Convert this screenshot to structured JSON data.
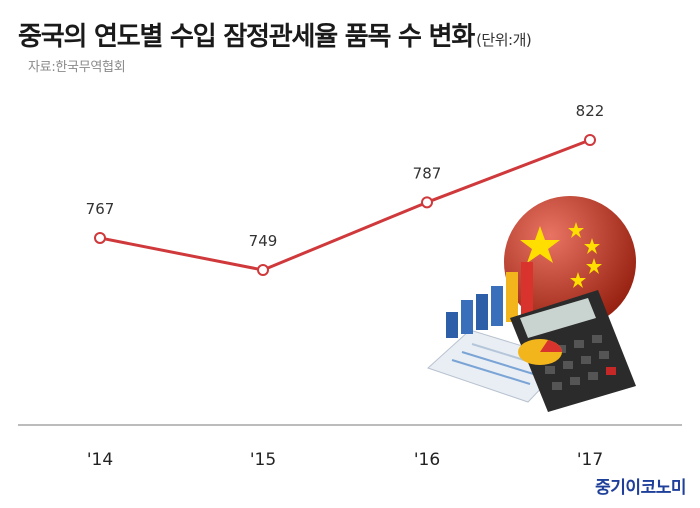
{
  "header": {
    "title": "중국의 연도별 수입 잠정관세율 품목 수 변화",
    "unit": "(단위:개)",
    "source": "자료:한국무역협회"
  },
  "brand": "중기이코노미",
  "colors": {
    "line": "#d0393b",
    "axis": "#7a7a7a",
    "brand": "#1e3f9a",
    "flag_red": "#de2910",
    "flag_star": "#ffde00"
  },
  "illustration": {
    "icons": [
      "china-flag-icon",
      "calculator-icon",
      "bar-chart-icon",
      "pie-chart-icon",
      "document-icon"
    ]
  },
  "chart_data": {
    "type": "line",
    "title": "중국의 연도별 수입 잠정관세율 품목 수 변화",
    "categories": [
      "'14",
      "'15",
      "'16",
      "'17"
    ],
    "series": [
      {
        "values": [
          767,
          749,
          787,
          822
        ]
      }
    ],
    "ylim": [
      700,
      840
    ],
    "grid": false,
    "legend": "none",
    "data_labels": true
  }
}
